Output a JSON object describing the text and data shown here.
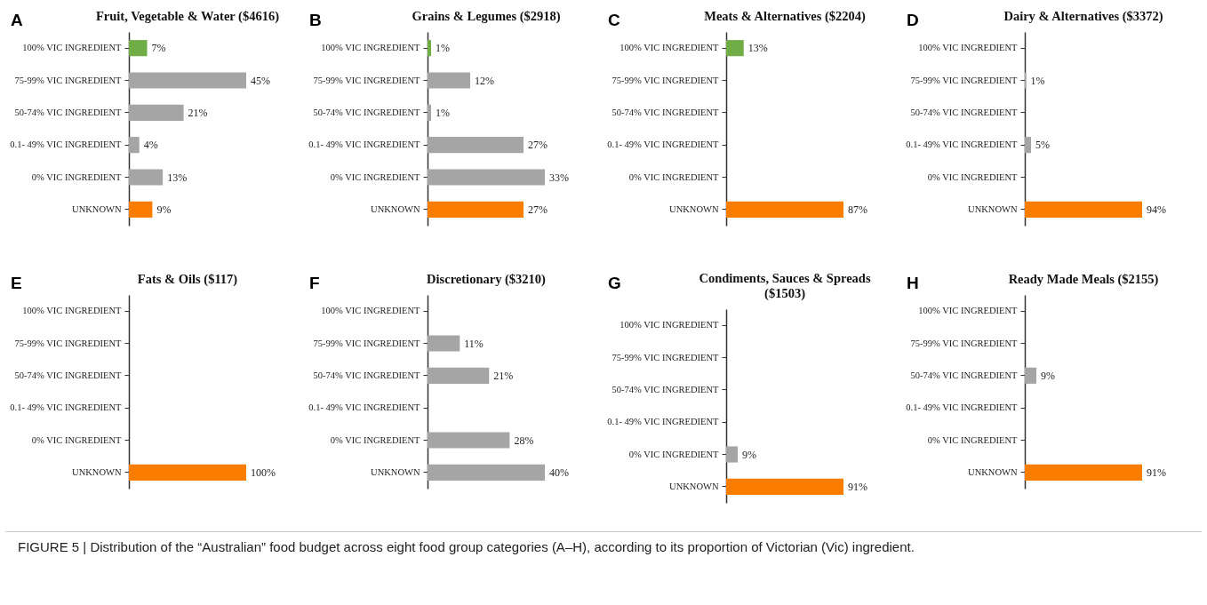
{
  "chart_data": [
    {
      "type": "bar",
      "orientation": "horizontal",
      "tick_labels": "y",
      "title": "Fruit, Vegetable & Water ($4616)",
      "annotations": [
        "A",
        "FIGURE 5 | Distribution of the “Australian” food budget across eight food group categories (A–H), according to its proportion of Victorian (Vic) ingredient."
      ],
      "categories": [
        "100% VIC INGREDIENT",
        "75-99% VIC INGREDIENT",
        "50-74% VIC INGREDIENT",
        "0.1- 49% VIC INGREDIENT",
        "0% VIC INGREDIENT",
        "UNKNOWN"
      ],
      "values": [
        7,
        45,
        21,
        4,
        13,
        9
      ],
      "value_labels": [
        "7%",
        "45%",
        "21%",
        "4%",
        "13%",
        "9%"
      ],
      "colors": [
        "#70ad47",
        "#a5a5a5",
        "#a5a5a5",
        "#a5a5a5",
        "#a5a5a5",
        "#fa7d00"
      ]
    },
    {
      "type": "bar",
      "orientation": "horizontal",
      "tick_labels": "y",
      "title": "Grains & Legumes ($2918)",
      "annotations": [
        "B"
      ],
      "categories": [
        "100% VIC INGREDIENT",
        "75-99% VIC INGREDIENT",
        "50-74% VIC INGREDIENT",
        "0.1- 49% VIC INGREDIENT",
        "0% VIC INGREDIENT",
        "UNKNOWN"
      ],
      "values": [
        1,
        12,
        1,
        27,
        33,
        27
      ],
      "value_labels": [
        "1%",
        "12%",
        "1%",
        "27%",
        "33%",
        "27%"
      ],
      "colors": [
        "#70ad47",
        "#a5a5a5",
        "#a5a5a5",
        "#a5a5a5",
        "#a5a5a5",
        "#fa7d00"
      ]
    },
    {
      "type": "bar",
      "orientation": "horizontal",
      "tick_labels": "y",
      "title": "Meats & Alternatives ($2204)",
      "annotations": [
        "C"
      ],
      "categories": [
        "100% VIC INGREDIENT",
        "75-99% VIC INGREDIENT",
        "50-74% VIC INGREDIENT",
        "0.1- 49% VIC INGREDIENT",
        "0% VIC INGREDIENT",
        "UNKNOWN"
      ],
      "values": [
        13,
        null,
        null,
        null,
        null,
        87
      ],
      "value_labels": [
        "13%",
        null,
        null,
        null,
        null,
        "87%"
      ],
      "colors": [
        "#70ad47",
        "#a5a5a5",
        "#a5a5a5",
        "#a5a5a5",
        "#a5a5a5",
        "#fa7d00"
      ]
    },
    {
      "type": "bar",
      "orientation": "horizontal",
      "tick_labels": "y",
      "title": "Dairy & Alternatives ($3372)",
      "annotations": [
        "D"
      ],
      "categories": [
        "100% VIC INGREDIENT",
        "75-99% VIC INGREDIENT",
        "50-74% VIC INGREDIENT",
        "0.1- 49% VIC INGREDIENT",
        "0% VIC INGREDIENT",
        "UNKNOWN"
      ],
      "values": [
        null,
        1,
        null,
        5,
        null,
        94
      ],
      "value_labels": [
        null,
        "1%",
        null,
        "5%",
        null,
        "94%"
      ],
      "colors": [
        "#70ad47",
        "#a5a5a5",
        "#a5a5a5",
        "#a5a5a5",
        "#a5a5a5",
        "#fa7d00"
      ]
    },
    {
      "type": "bar",
      "orientation": "horizontal",
      "tick_labels": "y",
      "title": "Fats & Oils ($117)",
      "annotations": [
        "E"
      ],
      "categories": [
        "100% VIC INGREDIENT",
        "75-99% VIC INGREDIENT",
        "50-74% VIC INGREDIENT",
        "0.1- 49% VIC INGREDIENT",
        "0% VIC INGREDIENT",
        "UNKNOWN"
      ],
      "values": [
        null,
        null,
        null,
        null,
        null,
        100
      ],
      "value_labels": [
        null,
        null,
        null,
        null,
        null,
        "100%"
      ],
      "colors": [
        "#70ad47",
        "#a5a5a5",
        "#a5a5a5",
        "#a5a5a5",
        "#a5a5a5",
        "#fa7d00"
      ]
    },
    {
      "type": "bar",
      "orientation": "horizontal",
      "tick_labels": "y",
      "title": "Discretionary ($3210)",
      "annotations": [
        "F"
      ],
      "categories": [
        "100% VIC INGREDIENT",
        "75-99% VIC INGREDIENT",
        "50-74% VIC INGREDIENT",
        "0.1- 49% VIC INGREDIENT",
        "0% VIC INGREDIENT",
        "UNKNOWN"
      ],
      "values": [
        null,
        11,
        21,
        null,
        28,
        40
      ],
      "value_labels": [
        null,
        "11%",
        "21%",
        null,
        "28%",
        "40%"
      ],
      "colors": [
        "#70ad47",
        "#a5a5a5",
        "#a5a5a5",
        "#a5a5a5",
        "#a5a5a5",
        "#a5a5a5"
      ]
    },
    {
      "type": "bar",
      "orientation": "horizontal",
      "tick_labels": "y",
      "title": "Condiments, Sauces & Spreads ($1503)",
      "annotations": [
        "G"
      ],
      "categories": [
        "100% VIC INGREDIENT",
        "75-99% VIC INGREDIENT",
        "50-74% VIC INGREDIENT",
        "0.1- 49% VIC INGREDIENT",
        "0% VIC INGREDIENT",
        "UNKNOWN"
      ],
      "values": [
        null,
        null,
        null,
        null,
        9,
        91
      ],
      "value_labels": [
        null,
        null,
        null,
        null,
        "9%",
        "91%"
      ],
      "colors": [
        "#70ad47",
        "#a5a5a5",
        "#a5a5a5",
        "#a5a5a5",
        "#a5a5a5",
        "#fa7d00"
      ]
    },
    {
      "type": "bar",
      "orientation": "horizontal",
      "tick_labels": "y",
      "title": "Ready Made Meals ($2155)",
      "annotations": [
        "H"
      ],
      "categories": [
        "100% VIC INGREDIENT",
        "75-99% VIC INGREDIENT",
        "50-74% VIC INGREDIENT",
        "0.1- 49% VIC INGREDIENT",
        "0% VIC INGREDIENT",
        "UNKNOWN"
      ],
      "values": [
        null,
        null,
        9,
        null,
        null,
        91
      ],
      "value_labels": [
        null,
        null,
        "9%",
        null,
        null,
        "91%"
      ],
      "colors": [
        "#70ad47",
        "#a5a5a5",
        "#a5a5a5",
        "#a5a5a5",
        "#a5a5a5",
        "#fa7d00"
      ]
    }
  ]
}
